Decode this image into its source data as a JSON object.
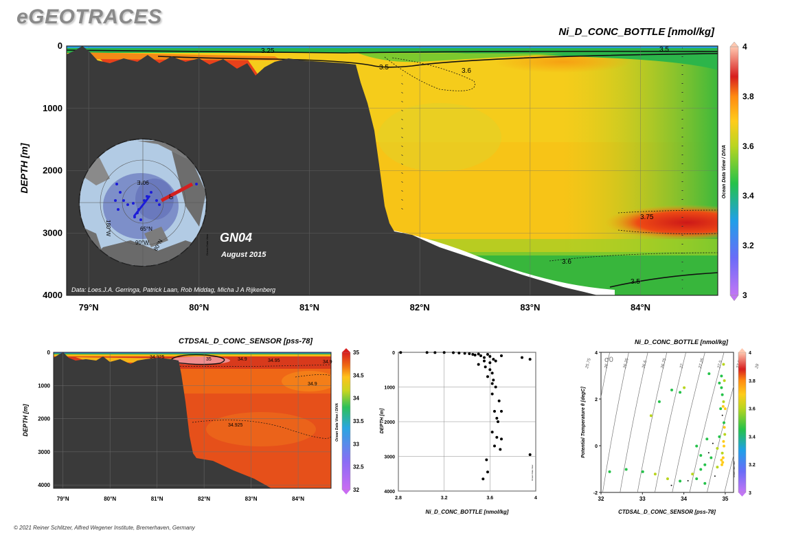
{
  "header": {
    "logo": "eGEOTRACES"
  },
  "footer": {
    "copyright": "© 2021 Reiner Schlitzer, Alfred Wegener Institute, Bremerhaven, Germany"
  },
  "main_section": {
    "title": "Ni_D_CONC_BOTTLE [nmol/kg]",
    "ylabel": "DEPTH [m]",
    "cruise": "GN04",
    "date": "August 2015",
    "credits": "Data: Loes.J.A. Gerringa, Patrick Laan, Rob Middag, Micha J A Rijkenberg",
    "side_label": "Ocean Data View / DIVA",
    "contour_labels": [
      "3.25",
      "3.5",
      "3.5",
      "3.6",
      "3.75",
      "3.6",
      "3.5"
    ],
    "map_labels": [
      "90°E",
      "180°W",
      "0°",
      "65°N",
      "90°W",
      "80°N",
      "Ocean Data View"
    ]
  },
  "chart_data": [
    {
      "type": "heatmap",
      "title": "Ni_D_CONC_BOTTLE [nmol/kg]",
      "ylabel": "DEPTH [m]",
      "x_ticks": [
        "79°N",
        "80°N",
        "81°N",
        "82°N",
        "83°N",
        "84°N"
      ],
      "y_ticks": [
        "0",
        "1000",
        "2000",
        "3000",
        "4000"
      ],
      "xlim": [
        78.8,
        84.7
      ],
      "ylim": [
        4000,
        0
      ],
      "colorbar_ticks": [
        "3",
        "3.2",
        "3.4",
        "3.6",
        "3.8",
        "4"
      ],
      "colorbar_range": [
        3,
        4
      ]
    },
    {
      "type": "heatmap",
      "title": "CTDSAL_D_CONC_SENSOR [pss-78]",
      "ylabel": "DEPTH [m]",
      "x_ticks": [
        "79°N",
        "80°N",
        "81°N",
        "82°N",
        "83°N",
        "84°N"
      ],
      "y_ticks": [
        "0",
        "1000",
        "2000",
        "3000",
        "4000"
      ],
      "xlim": [
        78.8,
        84.7
      ],
      "ylim": [
        4100,
        0
      ],
      "colorbar_ticks": [
        "32",
        "32.5",
        "33",
        "33.5",
        "34",
        "34.5",
        "35"
      ],
      "colorbar_range": [
        32,
        35
      ],
      "contour_labels": [
        "34.925",
        "35",
        "34.9",
        "34.95",
        "34.9",
        "34.9",
        "34.925"
      ],
      "side_label": "Ocean Data View / DIVA"
    },
    {
      "type": "scatter",
      "xlabel": "Ni_D_CONC_BOTTLE [nmol/kg]",
      "ylabel": "DEPTH [m]",
      "xlim": [
        2.8,
        4
      ],
      "ylim": [
        4000,
        0
      ],
      "x_ticks": [
        "2.8",
        "3.2",
        "3.6",
        "4"
      ],
      "y_ticks": [
        "0",
        "1000",
        "2000",
        "3000",
        "4000"
      ],
      "side_label": "Ocean Data View",
      "points": [
        [
          2.82,
          5
        ],
        [
          3.05,
          5
        ],
        [
          3.12,
          8
        ],
        [
          3.2,
          5
        ],
        [
          3.28,
          10
        ],
        [
          3.33,
          20
        ],
        [
          3.38,
          30
        ],
        [
          3.42,
          40
        ],
        [
          3.45,
          60
        ],
        [
          3.47,
          80
        ],
        [
          3.5,
          50
        ],
        [
          3.52,
          100
        ],
        [
          3.55,
          150
        ],
        [
          3.58,
          60
        ],
        [
          3.6,
          120
        ],
        [
          3.63,
          200
        ],
        [
          3.55,
          250
        ],
        [
          3.6,
          300
        ],
        [
          3.65,
          250
        ],
        [
          3.7,
          100
        ],
        [
          3.88,
          150
        ],
        [
          3.95,
          200
        ],
        [
          3.5,
          350
        ],
        [
          3.56,
          420
        ],
        [
          3.6,
          500
        ],
        [
          3.62,
          600
        ],
        [
          3.58,
          700
        ],
        [
          3.63,
          800
        ],
        [
          3.65,
          1000
        ],
        [
          3.62,
          1200
        ],
        [
          3.68,
          1400
        ],
        [
          3.64,
          1700
        ],
        [
          3.67,
          2000
        ],
        [
          3.7,
          1700
        ],
        [
          3.62,
          2300
        ],
        [
          3.66,
          2450
        ],
        [
          3.7,
          2500
        ],
        [
          3.64,
          2700
        ],
        [
          3.69,
          2800
        ],
        [
          3.58,
          3450
        ],
        [
          3.54,
          3650
        ],
        [
          3.95,
          2950
        ],
        [
          3.57,
          3100
        ],
        [
          3.62,
          900
        ],
        [
          3.66,
          1900
        ]
      ]
    },
    {
      "type": "scatter",
      "title": "Ni_D_CONC_BOTTLE [nmol/kg]",
      "xlabel": "CTDSAL_D_CONC_SENSOR [pss-78]",
      "ylabel": "Potential Temperature θ [degC]",
      "xlim": [
        32,
        35.2
      ],
      "ylim": [
        -2,
        4
      ],
      "x_ticks": [
        "32",
        "33",
        "34",
        "35"
      ],
      "y_ticks": [
        "-2",
        "0",
        "2",
        "4"
      ],
      "sigma_label": "σ0",
      "isopycnal_labels": [
        "25.75",
        "26",
        "26.25",
        "26.5",
        "26.75",
        "27",
        "27.25",
        "27.5",
        "27.75",
        "28"
      ],
      "colorbar_ticks": [
        "3",
        "3.2",
        "3.4",
        "3.6",
        "3.8",
        "4"
      ],
      "colorbar_range": [
        3,
        4
      ],
      "side_label": "Ocean Data View",
      "points": [
        [
          34.9,
          2.5,
          3.45
        ],
        [
          34.92,
          2.2,
          3.5
        ],
        [
          34.95,
          1.9,
          3.6
        ],
        [
          34.88,
          1.6,
          3.55
        ],
        [
          34.93,
          1.3,
          3.4
        ],
        [
          34.96,
          1.0,
          3.45
        ],
        [
          34.98,
          0.5,
          3.6
        ],
        [
          34.95,
          0.2,
          3.7
        ],
        [
          34.92,
          -0.3,
          3.65
        ],
        [
          34.9,
          -0.6,
          3.7
        ],
        [
          34.93,
          -0.7,
          3.75
        ],
        [
          34.91,
          -0.8,
          3.72
        ],
        [
          34.85,
          0.4,
          3.55
        ],
        [
          34.8,
          -0.1,
          3.62
        ],
        [
          34.7,
          0.1,
          3.4
        ],
        [
          34.6,
          -0.3,
          3.35
        ],
        [
          34.5,
          -0.8,
          3.5
        ],
        [
          34.4,
          -1.0,
          3.55
        ],
        [
          34.2,
          -1.2,
          3.6
        ],
        [
          34.1,
          -1.5,
          3.4
        ],
        [
          34.3,
          -1.4,
          3.45
        ],
        [
          34.5,
          -1.6,
          3.45
        ],
        [
          33.9,
          -1.5,
          3.5
        ],
        [
          33.7,
          -1.7,
          3.4
        ],
        [
          33.6,
          -1.4,
          3.6
        ],
        [
          33.3,
          -1.2,
          3.6
        ],
        [
          33.0,
          -1.1,
          3.55
        ],
        [
          32.6,
          -1.0,
          3.5
        ],
        [
          32.2,
          -1.1,
          3.5
        ],
        [
          33.2,
          1.3,
          3.6
        ],
        [
          33.4,
          1.9,
          3.55
        ],
        [
          33.7,
          2.4,
          3.5
        ],
        [
          33.9,
          2.3,
          3.5
        ],
        [
          34.0,
          2.5,
          3.6
        ],
        [
          34.6,
          3.1,
          3.5
        ],
        [
          34.95,
          3.5,
          3.6
        ],
        [
          34.9,
          3.0,
          3.5
        ],
        [
          34.97,
          2.8,
          3.6
        ],
        [
          34.85,
          2.7,
          3.55
        ],
        [
          34.75,
          -1.3,
          3.4
        ],
        [
          34.8,
          -0.9,
          3.65
        ],
        [
          34.65,
          -0.5,
          3.55
        ],
        [
          34.55,
          0.3,
          3.5
        ],
        [
          34.4,
          -0.4,
          3.55
        ],
        [
          34.3,
          0.0,
          3.5
        ],
        [
          34.99,
          1.6,
          3.7
        ],
        [
          34.97,
          0.8,
          3.75
        ],
        [
          34.94,
          1.7,
          3.7
        ],
        [
          34.94,
          -0.5,
          3.75
        ],
        [
          34.96,
          0.0,
          3.7
        ]
      ]
    }
  ]
}
